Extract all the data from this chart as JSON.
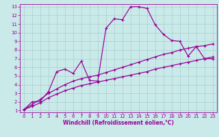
{
  "background_color": "#caeaea",
  "line_color": "#990099",
  "grid_color": "#aacccc",
  "xlabel": "Windchill (Refroidissement éolien,°C)",
  "xlabel_color": "#990099",
  "tick_color": "#990099",
  "xlim": [
    -0.5,
    23.5
  ],
  "ylim": [
    0.8,
    13.3
  ],
  "xticks": [
    0,
    1,
    2,
    3,
    4,
    5,
    6,
    7,
    8,
    9,
    10,
    11,
    12,
    13,
    14,
    15,
    16,
    17,
    18,
    19,
    20,
    21,
    22,
    23
  ],
  "yticks": [
    1,
    2,
    3,
    4,
    5,
    6,
    7,
    8,
    9,
    10,
    11,
    12,
    13
  ],
  "series1_x": [
    0,
    1,
    2,
    3,
    4,
    5,
    6,
    7,
    8,
    9,
    10,
    11,
    12,
    13,
    14,
    15,
    16,
    17,
    18,
    19,
    20,
    21,
    22,
    23
  ],
  "series1_y": [
    1.1,
    2.0,
    2.1,
    3.2,
    5.5,
    5.8,
    5.3,
    6.7,
    4.5,
    4.4,
    10.5,
    11.6,
    11.5,
    13.0,
    13.0,
    12.8,
    10.9,
    9.8,
    9.1,
    9.0,
    7.3,
    8.4,
    7.0,
    7.0
  ],
  "series2_x": [
    0,
    1,
    2,
    3,
    4,
    5,
    6,
    7,
    8,
    9,
    10,
    11,
    12,
    13,
    14,
    15,
    16,
    17,
    18,
    19,
    20,
    21,
    22,
    23
  ],
  "series2_y": [
    1.1,
    1.5,
    1.9,
    2.5,
    2.9,
    3.3,
    3.6,
    3.9,
    4.1,
    4.3,
    4.5,
    4.7,
    4.9,
    5.1,
    5.3,
    5.5,
    5.8,
    6.0,
    6.2,
    6.4,
    6.6,
    6.8,
    7.0,
    7.2
  ],
  "series3_x": [
    0,
    1,
    2,
    3,
    4,
    5,
    6,
    7,
    8,
    9,
    10,
    11,
    12,
    13,
    14,
    15,
    16,
    17,
    18,
    19,
    20,
    21,
    22,
    23
  ],
  "series3_y": [
    1.1,
    1.7,
    2.3,
    3.0,
    3.5,
    4.0,
    4.4,
    4.7,
    4.9,
    5.1,
    5.4,
    5.7,
    6.0,
    6.3,
    6.6,
    6.9,
    7.2,
    7.5,
    7.7,
    8.0,
    8.2,
    8.4,
    8.5,
    8.7
  ],
  "marker": "+",
  "markersize": 3,
  "linewidth": 0.9,
  "tick_fontsize": 5.0,
  "xlabel_fontsize": 5.5
}
